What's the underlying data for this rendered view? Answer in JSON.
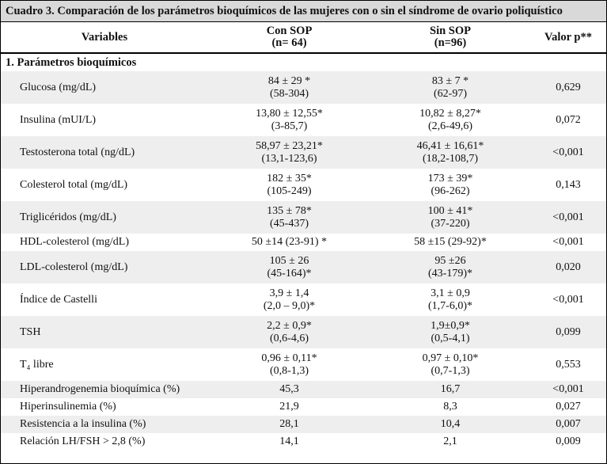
{
  "caption": "Cuadro 3. Comparación de los parámetros bioquímicos de las mujeres con o sin el síndrome de ovario poliquístico",
  "headers": {
    "variables": "Variables",
    "con_sop": "Con SOP",
    "con_sop_n": "(n= 64)",
    "sin_sop": "Sin SOP",
    "sin_sop_n": "(n=96)",
    "p": "Valor p**"
  },
  "section": "1. Parámetros bioquímicos",
  "rows": [
    {
      "label": "Glucosa (mg/dL)",
      "con1": "84 ± 29 *",
      "con2": "(58-304)",
      "sin1": "83 ± 7 *",
      "sin2": "(62-97)",
      "p": "0,629"
    },
    {
      "label": "Insulina (mUI/L)",
      "con1": "13,80 ± 12,55*",
      "con2": "(3-85,7)",
      "sin1": "10,82 ± 8,27*",
      "sin2": "(2,6-49,6)",
      "p": "0,072"
    },
    {
      "label": "Testosterona total (ng/dL)",
      "con1": "58,97 ± 23,21*",
      "con2": "(13,1-123,6)",
      "sin1": "46,41 ± 16,61*",
      "sin2": "(18,2-108,7)",
      "p": "<0,001"
    },
    {
      "label": "Colesterol total (mg/dL)",
      "con1": "182 ± 35*",
      "con2": "(105-249)",
      "sin1": "173 ± 39*",
      "sin2": "(96-262)",
      "p": "0,143"
    },
    {
      "label": "Triglicéridos (mg/dL)",
      "con1": "135 ± 78*",
      "con2": "(45-437)",
      "sin1": "100 ± 41*",
      "sin2": "(37-220)",
      "p": "<0,001"
    },
    {
      "label": "HDL-colesterol (mg/dL)",
      "con1": "50 ±14 (23-91) *",
      "sin1": "58 ±15 (29-92)*",
      "p": "<0,001"
    },
    {
      "label": "LDL-colesterol (mg/dL)",
      "con1": "105 ± 26",
      "con2": "(45-164)*",
      "sin1": "95 ±26",
      "sin2": "(43-179)*",
      "p": "0,020"
    },
    {
      "label": "Índice de Castelli",
      "con1": "3,9 ± 1,4",
      "con2": "(2,0 – 9,0)*",
      "sin1": "3,1 ± 0,9",
      "sin2": "(1,7-6,0)*",
      "p": "<0,001"
    },
    {
      "label": "TSH",
      "con1": "2,2 ± 0,9*",
      "con2": "(0,6-4,6)",
      "sin1": "1,9±0,9*",
      "sin2": "(0,5-4,1)",
      "p": "0,099"
    },
    {
      "label": "T₄ libre",
      "con1": "0,96 ± 0,11*",
      "con2": "(0,8-1,3)",
      "sin1": "0,97 ± 0,10*",
      "sin2": "(0,7-1,3)",
      "p": "0,553"
    },
    {
      "label": "Hiperandrogenemia bioquímica (%)",
      "con1": "45,3",
      "sin1": "16,7",
      "p": "<0,001"
    },
    {
      "label": "Hiperinsulinemia (%)",
      "con1": "21,9",
      "sin1": "8,3",
      "p": "0,027"
    },
    {
      "label": "Resistencia a la insulina (%)",
      "con1": "28,1",
      "sin1": "10,4",
      "p": "0,007"
    },
    {
      "label": "Relación LH/FSH > 2,8 (%)",
      "con1": "14,1",
      "sin1": "2,1",
      "p": "0,009"
    }
  ]
}
